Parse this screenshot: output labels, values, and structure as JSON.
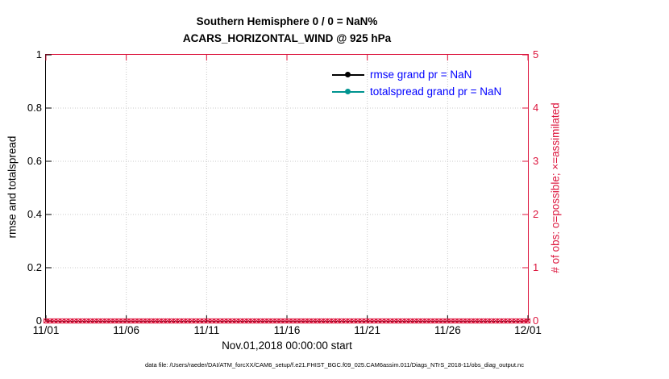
{
  "figure": {
    "title_line1": "Southern Hemisphere 0 / 0 = NaN%",
    "title_line2": "ACARS_HORIZONTAL_WIND @ 925 hPa",
    "caption": "data file: /Users/raeder/DAI/ATM_forcXX/CAM6_setup/f.e21.FHIST_BGC.f09_025.CAM6assim.011/Diags_NTrS_2018-11/obs_diag_output.nc"
  },
  "colors": {
    "obs_axis": "#dc143c",
    "left_axis": "#000000",
    "grid": "#c9c9c9"
  },
  "legend": {
    "text_color": "#0000ff",
    "items": [
      {
        "label": "rmse grand pr = NaN",
        "color": "#000000"
      },
      {
        "label": "totalspread grand pr = NaN",
        "color": "#009490"
      }
    ]
  },
  "chart_data": {
    "type": "line",
    "title": "Southern Hemisphere 0 / 0 = NaN%",
    "subtitle": "ACARS_HORIZONTAL_WIND @ 925 hPa",
    "xlabel": "Nov.01,2018 00:00:00 start",
    "x_tick_labels": [
      "11/01",
      "11/06",
      "11/11",
      "11/16",
      "11/21",
      "11/26",
      "12/01"
    ],
    "y_left": {
      "label": "rmse and totalspread",
      "tick_labels": [
        "0",
        "0.2",
        "0.4",
        "0.6",
        "0.8",
        "1"
      ],
      "tick_values": [
        0,
        0.2,
        0.4,
        0.6,
        0.8,
        1
      ],
      "range": [
        0,
        1
      ]
    },
    "y_right": {
      "label": "# of obs: o=possible; ×=assimilated",
      "tick_labels": [
        "0",
        "1",
        "2",
        "3",
        "4",
        "5"
      ],
      "tick_values": [
        0,
        1,
        2,
        3,
        4,
        5
      ],
      "range": [
        0,
        5
      ]
    },
    "series": [
      {
        "name": "rmse grand pr = NaN",
        "color": "#000000",
        "values": []
      },
      {
        "name": "totalspread grand pr = NaN",
        "color": "#009490",
        "values": []
      }
    ],
    "obs_counts": {
      "possible": 0,
      "assimilated": 0,
      "plotted_value": 0,
      "marker_count": 120,
      "color": "#dc143c"
    },
    "grid": true,
    "legend_position": "upper-center-inside"
  }
}
